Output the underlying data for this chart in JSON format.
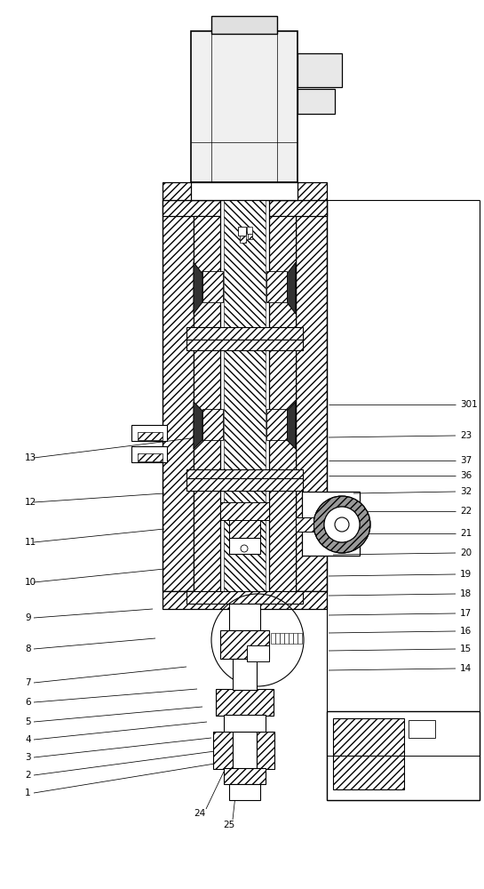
{
  "bg_color": "#ffffff",
  "line_color": "#000000",
  "figsize": [
    5.45,
    10.0
  ],
  "dpi": 100,
  "left_leaders": [
    [
      "1",
      28,
      892,
      248,
      858
    ],
    [
      "2",
      28,
      872,
      242,
      845
    ],
    [
      "3",
      28,
      852,
      238,
      830
    ],
    [
      "4",
      28,
      832,
      233,
      812
    ],
    [
      "5",
      28,
      812,
      228,
      795
    ],
    [
      "6",
      28,
      790,
      222,
      775
    ],
    [
      "7",
      28,
      768,
      210,
      750
    ],
    [
      "8",
      28,
      730,
      175,
      718
    ],
    [
      "9",
      28,
      695,
      172,
      685
    ],
    [
      "10",
      28,
      655,
      185,
      640
    ],
    [
      "11",
      28,
      610,
      185,
      595
    ],
    [
      "12",
      28,
      565,
      185,
      555
    ],
    [
      "13",
      28,
      515,
      255,
      488
    ]
  ],
  "right_leaders": [
    [
      "301",
      518,
      455,
      370,
      455
    ],
    [
      "23",
      518,
      490,
      370,
      492
    ],
    [
      "37",
      518,
      518,
      370,
      518
    ],
    [
      "36",
      518,
      535,
      370,
      535
    ],
    [
      "32",
      518,
      553,
      398,
      555
    ],
    [
      "22",
      518,
      575,
      398,
      575
    ],
    [
      "21",
      518,
      600,
      385,
      600
    ],
    [
      "20",
      518,
      622,
      375,
      624
    ],
    [
      "19",
      518,
      646,
      370,
      648
    ],
    [
      "18",
      518,
      668,
      370,
      670
    ],
    [
      "17",
      518,
      690,
      370,
      692
    ],
    [
      "16",
      518,
      710,
      370,
      712
    ],
    [
      "15",
      518,
      730,
      370,
      732
    ],
    [
      "14",
      518,
      752,
      370,
      754
    ]
  ],
  "bottom_leaders": [
    [
      "24",
      242,
      900,
      250,
      870
    ],
    [
      "25",
      268,
      912,
      265,
      880
    ]
  ]
}
